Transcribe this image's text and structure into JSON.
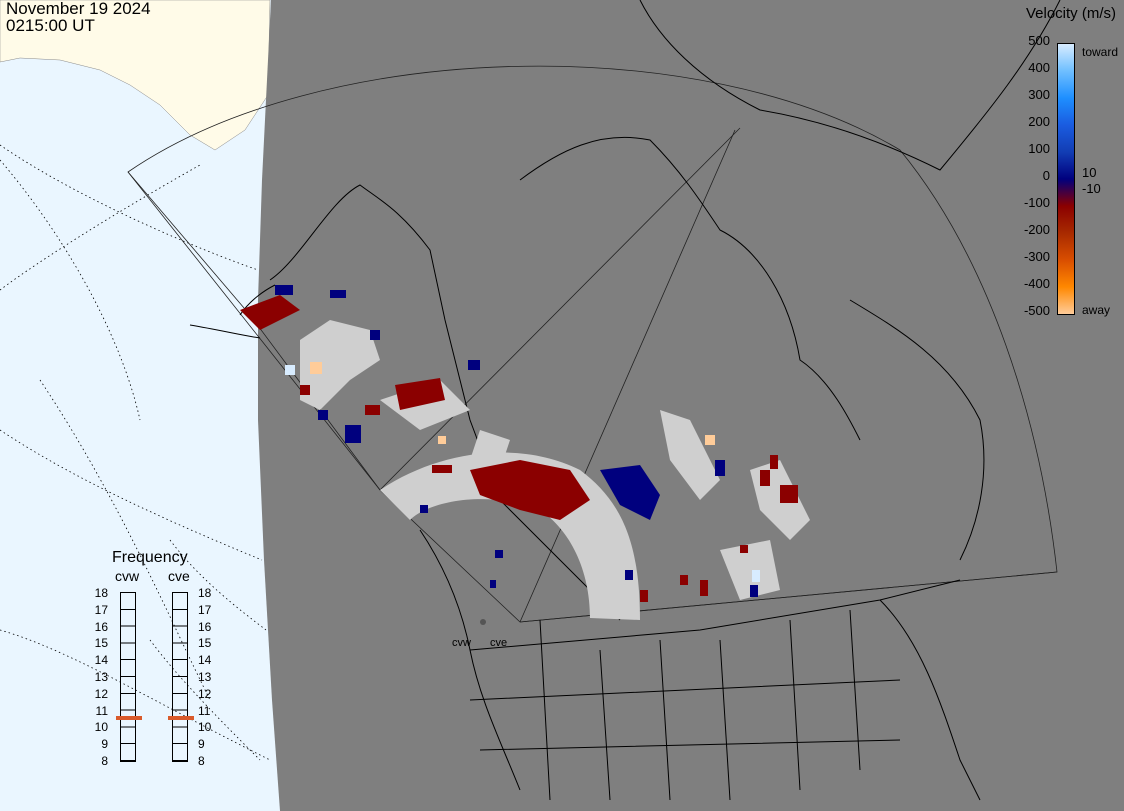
{
  "header": {
    "date": "November 19 2024",
    "time": "0215:00 UT"
  },
  "legend": {
    "title": "Velocity (m/s)",
    "ticks": [
      "500",
      "400",
      "300",
      "200",
      "100",
      "0",
      "-100",
      "-200",
      "-300",
      "-400",
      "-500"
    ],
    "toward_label": "toward",
    "away_label": "away",
    "pos_small": "10",
    "neg_small": "-10",
    "colors": [
      "#d8ecff",
      "#6fbfff",
      "#1e8fff",
      "#1a5ce0",
      "#123db4",
      "#00007e",
      "#8b0000",
      "#a82a00",
      "#d94e00",
      "#ff8800",
      "#ffcc99"
    ]
  },
  "frequency": {
    "title": "Frequency",
    "radars": [
      {
        "name": "cvw",
        "value": 11
      },
      {
        "name": "cve",
        "value": 11
      }
    ],
    "ticks": [
      "18",
      "17",
      "16",
      "15",
      "14",
      "13",
      "12",
      "11",
      "10",
      "9",
      "8"
    ]
  },
  "sites": {
    "cvw": "cvw",
    "cve": "cve"
  },
  "colors": {
    "land": "#7f7f7f",
    "ocean": "#eaf6ff",
    "offgrid_land": "#fffbe8",
    "groundscatter": "#cfcfcf",
    "velocity_red": "#8b0000",
    "velocity_blue": "#00007e"
  }
}
